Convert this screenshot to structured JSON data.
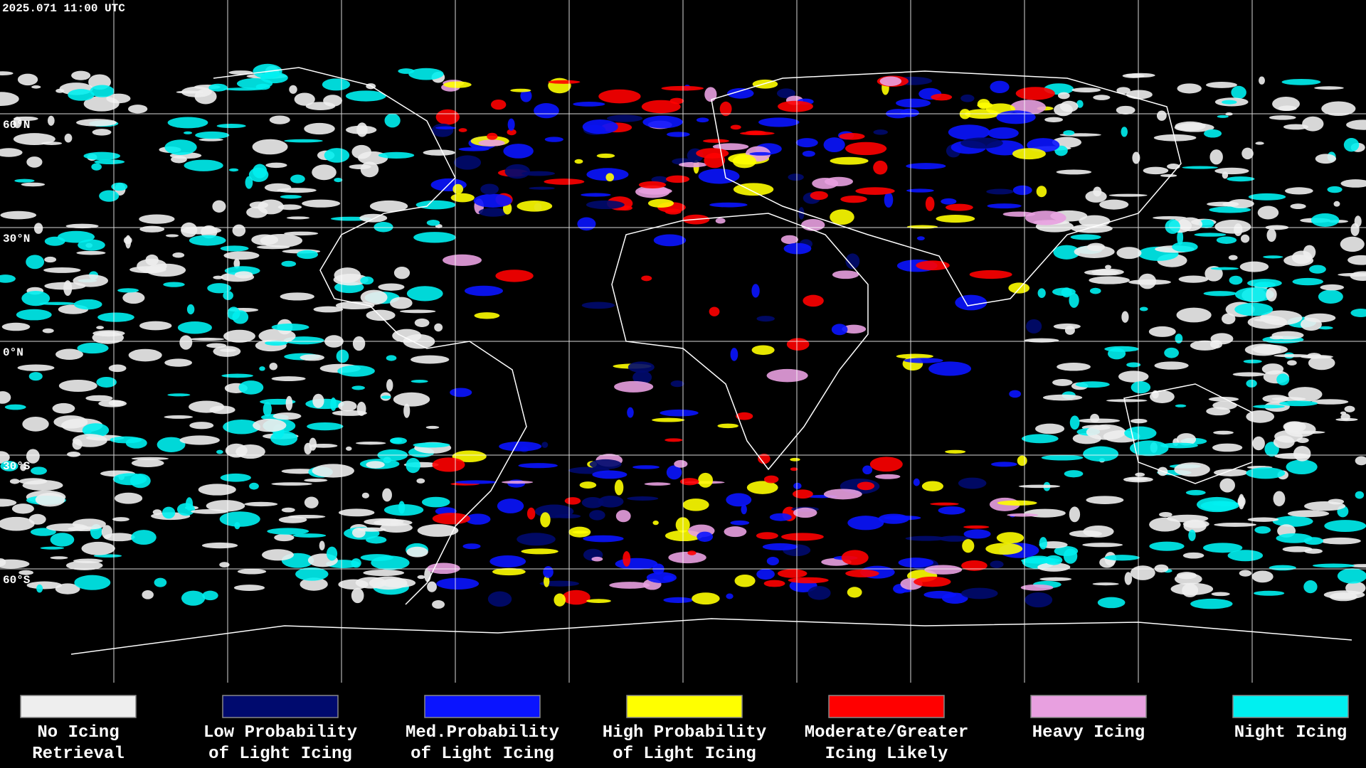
{
  "header": {
    "timestamp": "2025.071 11:00 UTC"
  },
  "map": {
    "latitude_labels": [
      "60°N",
      "30°N",
      "0°N",
      "30°S",
      "60°S"
    ]
  },
  "legend": {
    "items": [
      {
        "lines": [
          "No Icing",
          "Retrieval"
        ],
        "color": "#eeeeee"
      },
      {
        "lines": [
          "Low Probability",
          "of Light Icing"
        ],
        "color": "#000a6e"
      },
      {
        "lines": [
          "Med.Probability",
          "of Light Icing"
        ],
        "color": "#0a14ff"
      },
      {
        "lines": [
          "High Probability",
          "of Light Icing"
        ],
        "color": "#ffff00"
      },
      {
        "lines": [
          "Moderate/Greater",
          "Icing Likely"
        ],
        "color": "#ff0000"
      },
      {
        "lines": [
          "Heavy Icing",
          ""
        ],
        "color": "#e8a0e0"
      },
      {
        "lines": [
          "Night Icing",
          ""
        ],
        "color": "#00f0f0"
      }
    ]
  }
}
